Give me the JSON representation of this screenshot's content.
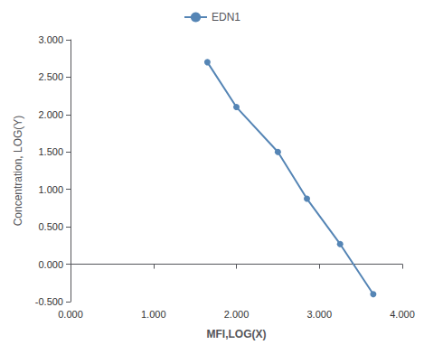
{
  "chart_data": {
    "type": "line",
    "x": [
      1.65,
      2.0,
      2.5,
      2.85,
      3.25,
      3.65
    ],
    "series": [
      {
        "name": "EDN1",
        "color": "#5585b5",
        "marker": "circle",
        "values": [
          2.7,
          2.1,
          1.5,
          0.875,
          0.27,
          -0.4
        ]
      }
    ],
    "xlabel": "MFI,LOG(X)",
    "ylabel": "Concentration, LOG(Y)",
    "xlim": [
      0.0,
      4.0
    ],
    "ylim": [
      -0.5,
      3.0
    ],
    "xticks": [
      {
        "value": 0.0,
        "label": "0.000"
      },
      {
        "value": 1.0,
        "label": "1.000"
      },
      {
        "value": 2.0,
        "label": "2.000"
      },
      {
        "value": 3.0,
        "label": "3.000"
      },
      {
        "value": 4.0,
        "label": "4.000"
      }
    ],
    "yticks": [
      {
        "value": -0.5,
        "label": "-0.500"
      },
      {
        "value": 0.0,
        "label": "0.000"
      },
      {
        "value": 0.5,
        "label": "0.500"
      },
      {
        "value": 1.0,
        "label": "1.000"
      },
      {
        "value": 1.5,
        "label": "1.500"
      },
      {
        "value": 2.0,
        "label": "2.000"
      },
      {
        "value": 2.5,
        "label": "2.500"
      },
      {
        "value": 3.0,
        "label": "3.000"
      }
    ],
    "grid": false,
    "legend": "top"
  }
}
